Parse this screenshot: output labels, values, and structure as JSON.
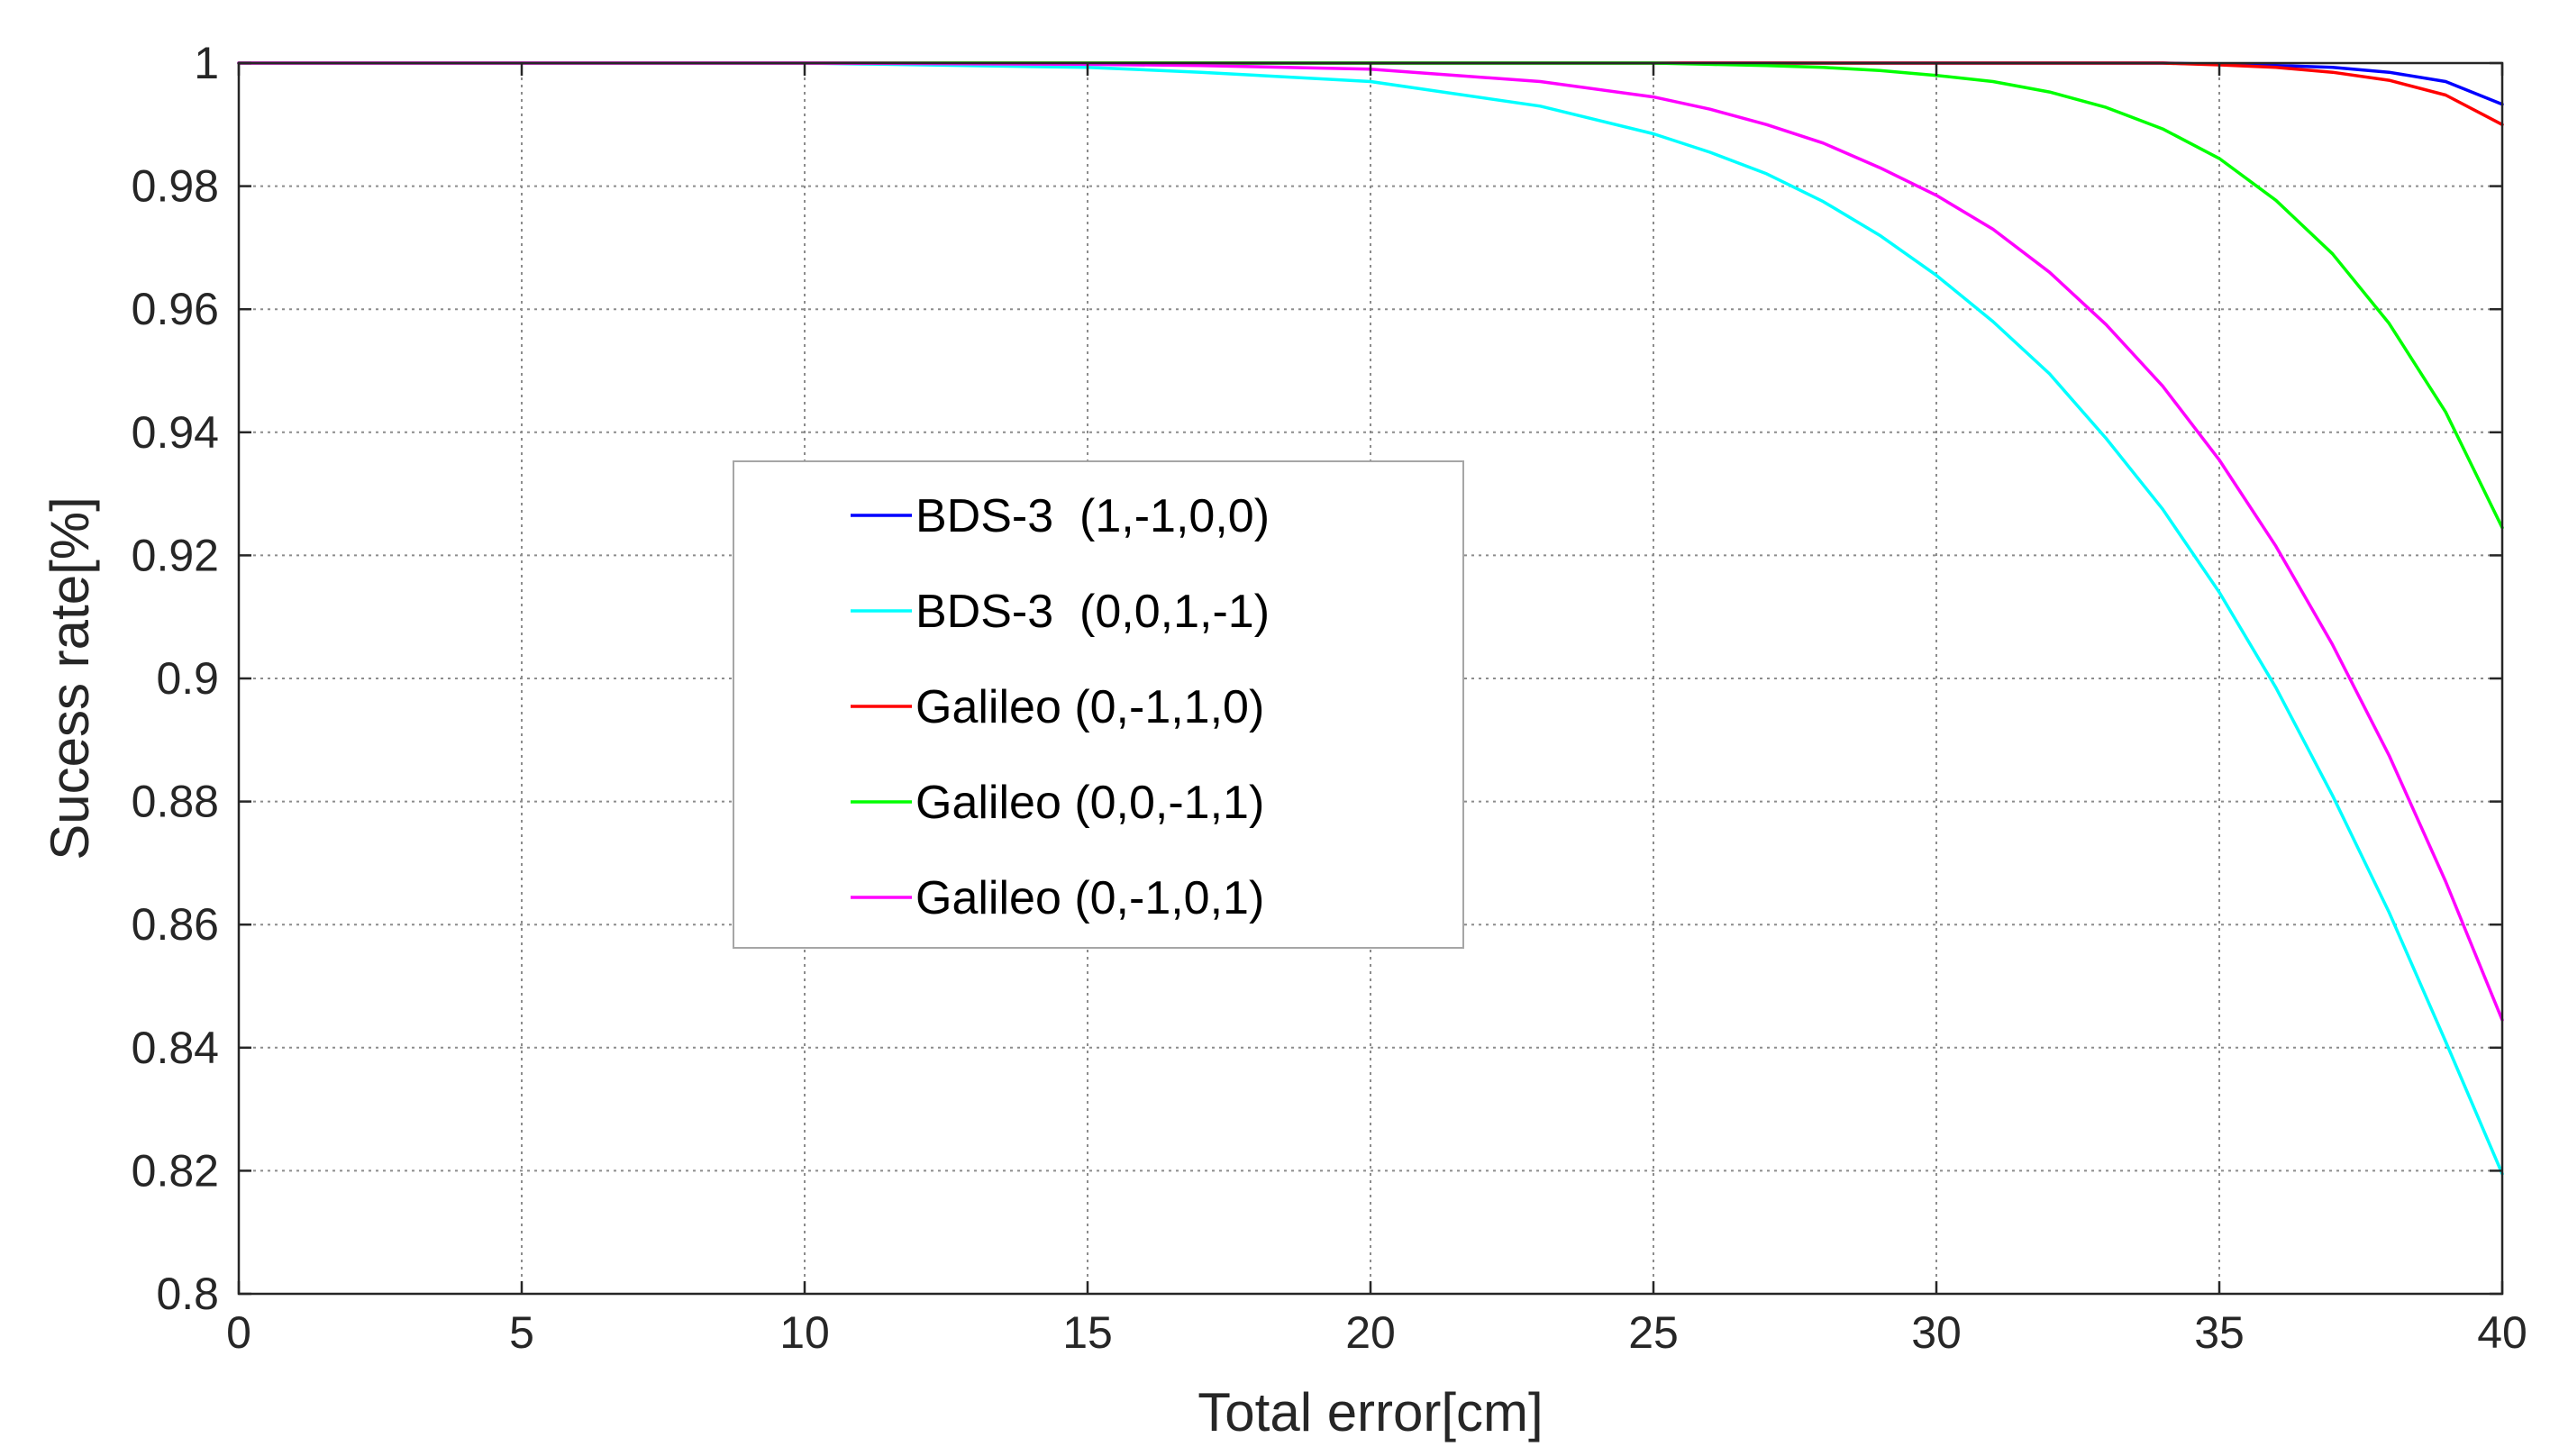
{
  "chart_data": {
    "type": "line",
    "title": "",
    "xlabel": "Total error[cm]",
    "ylabel": "Sucess rate[%]",
    "xlim": [
      0,
      40
    ],
    "ylim": [
      0.8,
      1
    ],
    "xticks": [
      "0",
      "5",
      "10",
      "15",
      "20",
      "25",
      "30",
      "35",
      "40"
    ],
    "yticks": [
      "0.8",
      "0.82",
      "0.84",
      "0.86",
      "0.88",
      "0.9",
      "0.92",
      "0.94",
      "0.96",
      "0.98",
      "1"
    ],
    "grid": true,
    "legend_position": "center-left",
    "x": [
      0,
      10,
      15,
      17,
      20,
      23,
      25,
      26,
      27,
      28,
      29,
      30,
      31,
      32,
      33,
      34,
      35,
      36,
      37,
      38,
      39,
      40
    ],
    "series": [
      {
        "name": "BDS-3  (1,-1,0,0)",
        "color": "#0000ff",
        "values": [
          1,
          1,
          1,
          1,
          1,
          1,
          1,
          1,
          1,
          1,
          1,
          1,
          1,
          1,
          1,
          1,
          0.9998,
          0.9996,
          0.9993,
          0.9985,
          0.997,
          0.9933
        ]
      },
      {
        "name": "BDS-3  (0,0,1,-1)",
        "color": "#00ffff",
        "values": [
          1,
          1,
          0.9993,
          0.9985,
          0.997,
          0.993,
          0.9885,
          0.9855,
          0.982,
          0.9775,
          0.972,
          0.9655,
          0.958,
          0.9495,
          0.939,
          0.9275,
          0.914,
          0.8985,
          0.881,
          0.862,
          0.841,
          0.8195
        ]
      },
      {
        "name": "Galileo (0,-1,1,0)",
        "color": "#ff0000",
        "values": [
          1,
          1,
          1,
          1,
          1,
          1,
          1,
          1,
          1,
          1,
          1,
          1,
          1,
          1,
          1,
          1,
          0.9997,
          0.9993,
          0.9985,
          0.9972,
          0.9948,
          0.99
        ]
      },
      {
        "name": "Galileo (0,0,-1,1)",
        "color": "#00ff00",
        "values": [
          1,
          1,
          1,
          1,
          1,
          1,
          1,
          0.9998,
          0.9996,
          0.9993,
          0.9988,
          0.998,
          0.997,
          0.9953,
          0.9928,
          0.9893,
          0.9845,
          0.9777,
          0.969,
          0.9577,
          0.9433,
          0.9245
        ]
      },
      {
        "name": "Galileo (0,-1,0,1)",
        "color": "#ff00ff",
        "values": [
          1,
          1,
          0.9998,
          0.9996,
          0.999,
          0.997,
          0.9945,
          0.9925,
          0.99,
          0.987,
          0.983,
          0.9785,
          0.973,
          0.966,
          0.9575,
          0.9475,
          0.9355,
          0.9215,
          0.9055,
          0.8875,
          0.867,
          0.8445
        ]
      }
    ]
  }
}
